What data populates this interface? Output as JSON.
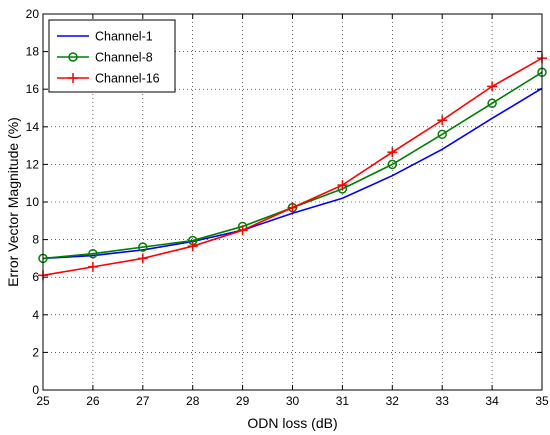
{
  "chart_data": {
    "type": "line",
    "xlabel": "ODN loss (dB)",
    "ylabel": "Error Vector Magnitude (%)",
    "xlim": [
      25,
      35
    ],
    "ylim": [
      0,
      20
    ],
    "xticks": [
      "25",
      "26",
      "27",
      "28",
      "29",
      "30",
      "31",
      "32",
      "33",
      "34",
      "35"
    ],
    "yticks": [
      "0",
      "2",
      "4",
      "6",
      "8",
      "10",
      "12",
      "14",
      "16",
      "18",
      "20"
    ],
    "grid": true,
    "legend_position": "top-left",
    "x": [
      25,
      26,
      27,
      28,
      29,
      30,
      31,
      32,
      33,
      34,
      35
    ],
    "series": [
      {
        "name": "Channel-1",
        "color": "#0000ff",
        "marker": "none",
        "values": [
          7.0,
          7.15,
          7.45,
          7.9,
          8.5,
          9.4,
          10.2,
          11.4,
          12.8,
          14.45,
          16.05
        ]
      },
      {
        "name": "Channel-8",
        "color": "#008000",
        "marker": "circle",
        "values": [
          7.0,
          7.25,
          7.6,
          7.95,
          8.7,
          9.7,
          10.7,
          12.0,
          13.6,
          15.25,
          16.9
        ]
      },
      {
        "name": "Channel-16",
        "color": "#ff0000",
        "marker": "plus",
        "values": [
          6.1,
          6.55,
          7.0,
          7.65,
          8.5,
          9.7,
          10.9,
          12.65,
          14.35,
          16.15,
          17.65
        ]
      }
    ]
  }
}
